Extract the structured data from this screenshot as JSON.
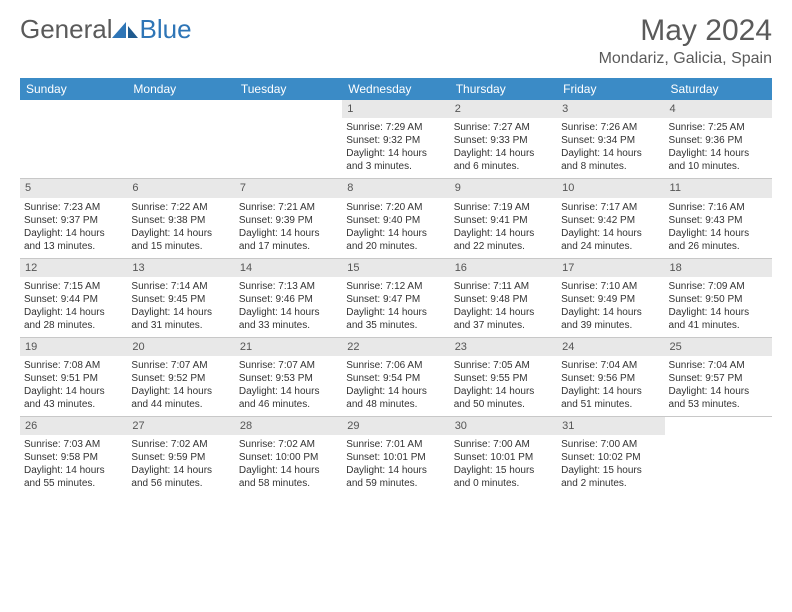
{
  "logo": {
    "general": "General",
    "blue": "Blue"
  },
  "title": "May 2024",
  "location": "Mondariz, Galicia, Spain",
  "colors": {
    "header_bg": "#3b8bc6",
    "header_fg": "#ffffff",
    "daynum_bg": "#e8e8e8",
    "daynum_fg": "#555555",
    "text": "#333333",
    "divider": "#c8c8c8",
    "logo_gray": "#5a5a5a",
    "logo_blue": "#2e75b6"
  },
  "layout": {
    "cols": 7,
    "rows": 5,
    "font_family": "Arial",
    "header_fontsize": 12,
    "cell_fontsize": 10,
    "title_fontsize": 30,
    "location_fontsize": 16
  },
  "dayNames": [
    "Sunday",
    "Monday",
    "Tuesday",
    "Wednesday",
    "Thursday",
    "Friday",
    "Saturday"
  ],
  "weeks": [
    [
      null,
      null,
      null,
      {
        "n": "1",
        "sr": "7:29 AM",
        "ss": "9:32 PM",
        "dl": "14 hours and 3 minutes."
      },
      {
        "n": "2",
        "sr": "7:27 AM",
        "ss": "9:33 PM",
        "dl": "14 hours and 6 minutes."
      },
      {
        "n": "3",
        "sr": "7:26 AM",
        "ss": "9:34 PM",
        "dl": "14 hours and 8 minutes."
      },
      {
        "n": "4",
        "sr": "7:25 AM",
        "ss": "9:36 PM",
        "dl": "14 hours and 10 minutes."
      }
    ],
    [
      {
        "n": "5",
        "sr": "7:23 AM",
        "ss": "9:37 PM",
        "dl": "14 hours and 13 minutes."
      },
      {
        "n": "6",
        "sr": "7:22 AM",
        "ss": "9:38 PM",
        "dl": "14 hours and 15 minutes."
      },
      {
        "n": "7",
        "sr": "7:21 AM",
        "ss": "9:39 PM",
        "dl": "14 hours and 17 minutes."
      },
      {
        "n": "8",
        "sr": "7:20 AM",
        "ss": "9:40 PM",
        "dl": "14 hours and 20 minutes."
      },
      {
        "n": "9",
        "sr": "7:19 AM",
        "ss": "9:41 PM",
        "dl": "14 hours and 22 minutes."
      },
      {
        "n": "10",
        "sr": "7:17 AM",
        "ss": "9:42 PM",
        "dl": "14 hours and 24 minutes."
      },
      {
        "n": "11",
        "sr": "7:16 AM",
        "ss": "9:43 PM",
        "dl": "14 hours and 26 minutes."
      }
    ],
    [
      {
        "n": "12",
        "sr": "7:15 AM",
        "ss": "9:44 PM",
        "dl": "14 hours and 28 minutes."
      },
      {
        "n": "13",
        "sr": "7:14 AM",
        "ss": "9:45 PM",
        "dl": "14 hours and 31 minutes."
      },
      {
        "n": "14",
        "sr": "7:13 AM",
        "ss": "9:46 PM",
        "dl": "14 hours and 33 minutes."
      },
      {
        "n": "15",
        "sr": "7:12 AM",
        "ss": "9:47 PM",
        "dl": "14 hours and 35 minutes."
      },
      {
        "n": "16",
        "sr": "7:11 AM",
        "ss": "9:48 PM",
        "dl": "14 hours and 37 minutes."
      },
      {
        "n": "17",
        "sr": "7:10 AM",
        "ss": "9:49 PM",
        "dl": "14 hours and 39 minutes."
      },
      {
        "n": "18",
        "sr": "7:09 AM",
        "ss": "9:50 PM",
        "dl": "14 hours and 41 minutes."
      }
    ],
    [
      {
        "n": "19",
        "sr": "7:08 AM",
        "ss": "9:51 PM",
        "dl": "14 hours and 43 minutes."
      },
      {
        "n": "20",
        "sr": "7:07 AM",
        "ss": "9:52 PM",
        "dl": "14 hours and 44 minutes."
      },
      {
        "n": "21",
        "sr": "7:07 AM",
        "ss": "9:53 PM",
        "dl": "14 hours and 46 minutes."
      },
      {
        "n": "22",
        "sr": "7:06 AM",
        "ss": "9:54 PM",
        "dl": "14 hours and 48 minutes."
      },
      {
        "n": "23",
        "sr": "7:05 AM",
        "ss": "9:55 PM",
        "dl": "14 hours and 50 minutes."
      },
      {
        "n": "24",
        "sr": "7:04 AM",
        "ss": "9:56 PM",
        "dl": "14 hours and 51 minutes."
      },
      {
        "n": "25",
        "sr": "7:04 AM",
        "ss": "9:57 PM",
        "dl": "14 hours and 53 minutes."
      }
    ],
    [
      {
        "n": "26",
        "sr": "7:03 AM",
        "ss": "9:58 PM",
        "dl": "14 hours and 55 minutes."
      },
      {
        "n": "27",
        "sr": "7:02 AM",
        "ss": "9:59 PM",
        "dl": "14 hours and 56 minutes."
      },
      {
        "n": "28",
        "sr": "7:02 AM",
        "ss": "10:00 PM",
        "dl": "14 hours and 58 minutes."
      },
      {
        "n": "29",
        "sr": "7:01 AM",
        "ss": "10:01 PM",
        "dl": "14 hours and 59 minutes."
      },
      {
        "n": "30",
        "sr": "7:00 AM",
        "ss": "10:01 PM",
        "dl": "15 hours and 0 minutes."
      },
      {
        "n": "31",
        "sr": "7:00 AM",
        "ss": "10:02 PM",
        "dl": "15 hours and 2 minutes."
      },
      null
    ]
  ],
  "labels": {
    "sunrise": "Sunrise:",
    "sunset": "Sunset:",
    "daylight": "Daylight:"
  }
}
